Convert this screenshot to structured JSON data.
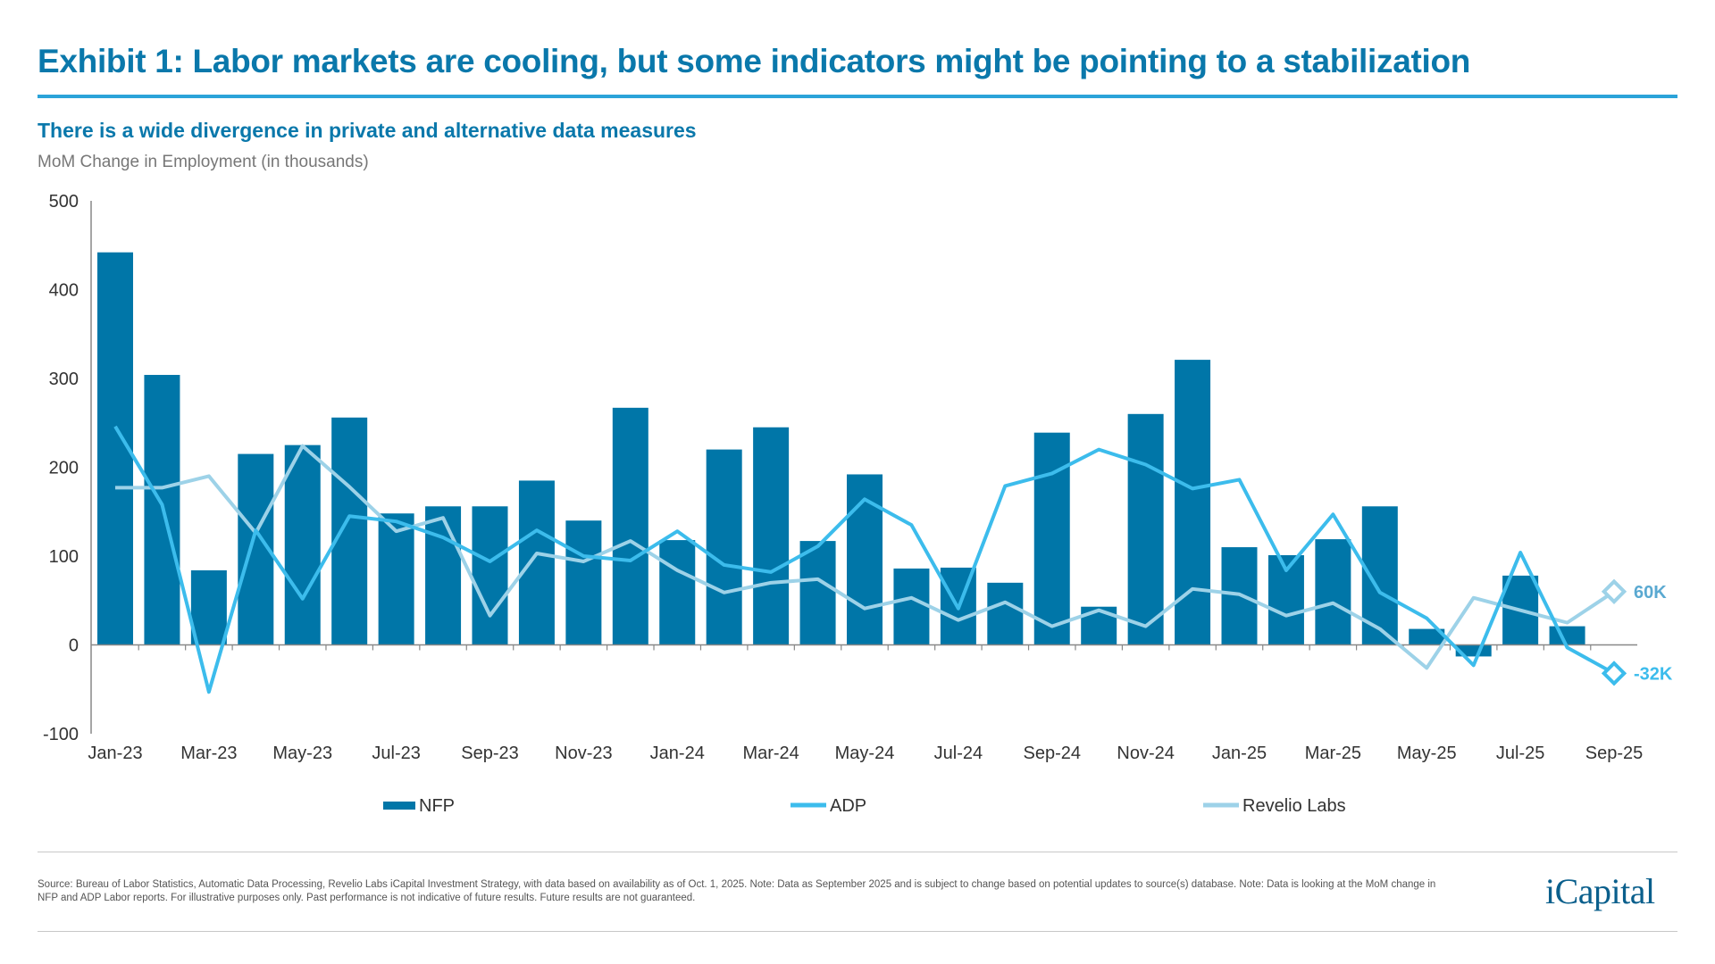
{
  "header": {
    "title": "Exhibit 1: Labor markets are cooling, but some indicators might be pointing to a stabilization",
    "subtitle": "There is a wide divergence in private and alternative data measures",
    "units": "MoM Change in Employment (in thousands)"
  },
  "chart_data": {
    "type": "bar+line",
    "ylabel": "MoM Change in Employment (in thousands)",
    "ylim": [
      -100,
      500
    ],
    "yticks": [
      "500",
      "400",
      "300",
      "200",
      "100",
      "0",
      "-100"
    ],
    "ytick_values": [
      500,
      400,
      300,
      200,
      100,
      0,
      -100
    ],
    "grid": false,
    "legend_position": "bottom",
    "categories": [
      "Jan-23",
      "Feb-23",
      "Mar-23",
      "Apr-23",
      "May-23",
      "Jun-23",
      "Jul-23",
      "Aug-23",
      "Sep-23",
      "Oct-23",
      "Nov-23",
      "Dec-23",
      "Jan-24",
      "Feb-24",
      "Mar-24",
      "Apr-24",
      "May-24",
      "Jun-24",
      "Jul-24",
      "Aug-24",
      "Sep-24",
      "Oct-24",
      "Nov-24",
      "Dec-24",
      "Jan-25",
      "Feb-25",
      "Mar-25",
      "Apr-25",
      "May-25",
      "Jun-25",
      "Jul-25",
      "Aug-25",
      "Sep-25"
    ],
    "xtick_labels": [
      "Jan-23",
      "Mar-23",
      "May-23",
      "Jul-23",
      "Sep-23",
      "Nov-23",
      "Jan-24",
      "Mar-24",
      "May-24",
      "Jul-24",
      "Sep-24",
      "Nov-24",
      "Jan-25",
      "Mar-25",
      "May-25",
      "Jul-25",
      "Sep-25"
    ],
    "series": [
      {
        "name": "NFP",
        "kind": "bar",
        "color": "#0076a8",
        "values": [
          442,
          304,
          84,
          215,
          225,
          256,
          148,
          156,
          156,
          185,
          140,
          267,
          118,
          220,
          245,
          117,
          192,
          86,
          87,
          70,
          239,
          43,
          260,
          321,
          110,
          101,
          119,
          156,
          18,
          -13,
          78,
          21,
          null
        ]
      },
      {
        "name": "ADP",
        "kind": "line",
        "color": "#3cbcec",
        "values": [
          246,
          158,
          -53,
          129,
          52,
          145,
          139,
          121,
          94,
          129,
          100,
          95,
          128,
          90,
          82,
          111,
          164,
          135,
          41,
          179,
          193,
          220,
          203,
          176,
          186,
          84,
          147,
          59,
          30,
          -23,
          104,
          -3,
          -32
        ]
      },
      {
        "name": "Revelio Labs",
        "kind": "line",
        "color": "#9dd2e8",
        "values": [
          177,
          177,
          190,
          126,
          224,
          178,
          128,
          143,
          33,
          103,
          94,
          117,
          84,
          59,
          70,
          74,
          41,
          53,
          28,
          48,
          21,
          39,
          21,
          63,
          57,
          33,
          47,
          18,
          -26,
          53,
          39,
          25,
          60
        ]
      }
    ],
    "annotations": [
      {
        "series": "Revelio Labs",
        "label": "60K",
        "color": "#5aa9d1"
      },
      {
        "series": "ADP",
        "label": "-32K",
        "color": "#3cbcec"
      }
    ]
  },
  "footer": {
    "source_line1": "Source: Bureau of Labor Statistics, Automatic Data Processing, Revelio Labs iCapital Investment Strategy, with data based on availability as of Oct. 1, 2025. Note: Data as September 2025 and is subject to change based on potential updates to source(s) database. Note: Data is looking at the MoM change in",
    "source_line2": "NFP and ADP Labor reports. For illustrative purposes only. Past performance is not indicative of future results. Future results are not guaranteed.",
    "logo": "iCapital"
  }
}
